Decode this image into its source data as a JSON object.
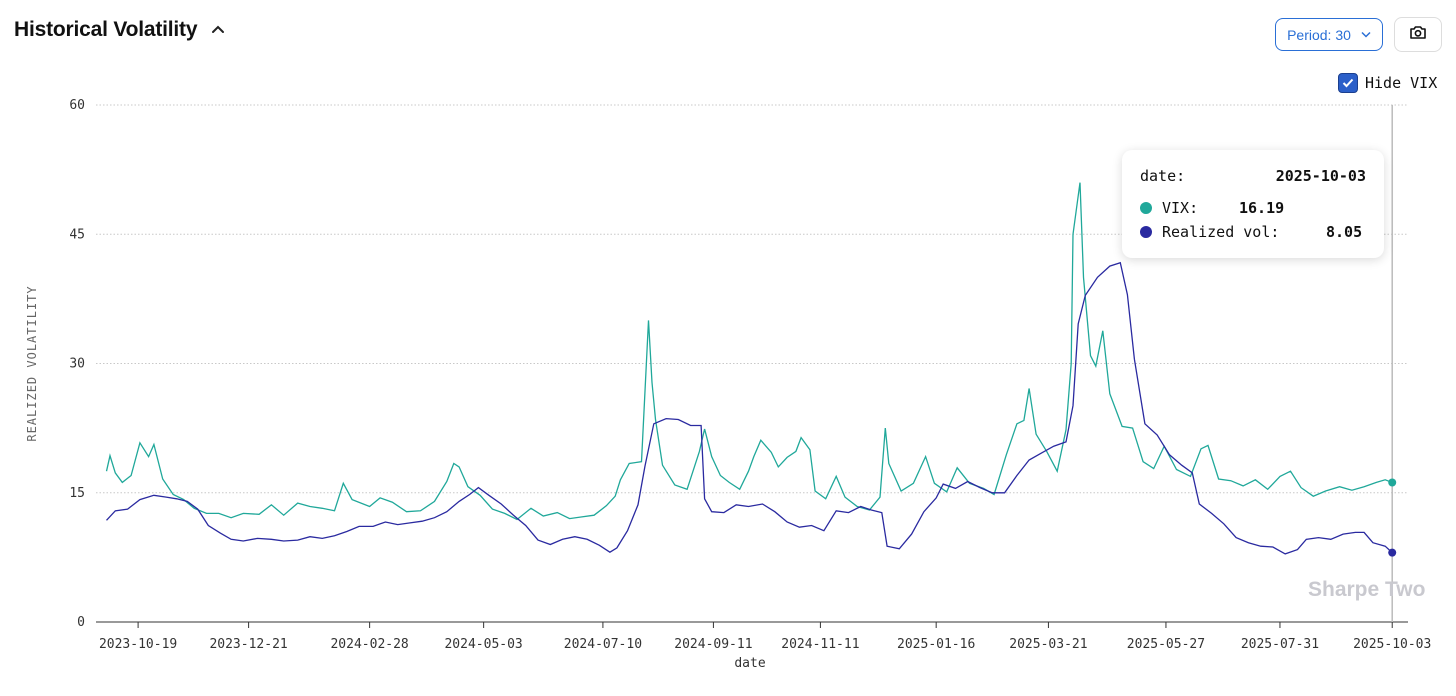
{
  "header": {
    "title": "Historical Volatility",
    "collapse_icon": "chevron-up-icon"
  },
  "controls": {
    "period_label": "Period: 30",
    "camera_icon": "camera-icon",
    "hide_vix_label": "Hide VIX",
    "hide_vix_checked": true
  },
  "tooltip": {
    "date_label": "date:",
    "date_value": "2025-10-03",
    "vix_label": "VIX:",
    "vix_value": "16.19",
    "rv_label": "Realized vol:",
    "rv_value": "8.05"
  },
  "watermark": "Sharpe Two",
  "colors": {
    "vix": "#20a89a",
    "realized": "#2a2aa0",
    "grid": "#c8c8c8"
  },
  "chart_data": {
    "type": "line",
    "xlabel": "date",
    "ylabel": "REALIZED VOLATILITY",
    "ylim": [
      0,
      60
    ],
    "yticks": [
      0,
      15,
      30,
      45,
      60
    ],
    "x_range": [
      "2023-09-25",
      "2025-10-12"
    ],
    "xticks": [
      "2023-10-19",
      "2023-12-21",
      "2024-02-28",
      "2024-05-03",
      "2024-07-10",
      "2024-09-11",
      "2024-11-11",
      "2025-01-16",
      "2025-03-21",
      "2025-05-27",
      "2025-07-31",
      "2025-10-03"
    ],
    "grid": true,
    "series": [
      {
        "name": "VIX",
        "color": "#20a89a",
        "points": [
          [
            "2023-10-01",
            17.5
          ],
          [
            "2023-10-03",
            19.3
          ],
          [
            "2023-10-06",
            17.3
          ],
          [
            "2023-10-10",
            16.2
          ],
          [
            "2023-10-15",
            17.0
          ],
          [
            "2023-10-20",
            20.8
          ],
          [
            "2023-10-25",
            19.2
          ],
          [
            "2023-10-28",
            20.6
          ],
          [
            "2023-11-02",
            16.6
          ],
          [
            "2023-11-08",
            14.8
          ],
          [
            "2023-11-14",
            14.2
          ],
          [
            "2023-11-20",
            13.2
          ],
          [
            "2023-11-27",
            12.6
          ],
          [
            "2023-12-04",
            12.6
          ],
          [
            "2023-12-11",
            12.1
          ],
          [
            "2023-12-18",
            12.6
          ],
          [
            "2023-12-27",
            12.5
          ],
          [
            "2024-01-03",
            13.6
          ],
          [
            "2024-01-10",
            12.4
          ],
          [
            "2024-01-18",
            13.8
          ],
          [
            "2024-01-25",
            13.4
          ],
          [
            "2024-02-01",
            13.2
          ],
          [
            "2024-02-08",
            12.9
          ],
          [
            "2024-02-13",
            16.1
          ],
          [
            "2024-02-18",
            14.2
          ],
          [
            "2024-02-28",
            13.4
          ],
          [
            "2024-03-05",
            14.4
          ],
          [
            "2024-03-12",
            13.9
          ],
          [
            "2024-03-20",
            12.8
          ],
          [
            "2024-03-28",
            12.9
          ],
          [
            "2024-04-05",
            14.0
          ],
          [
            "2024-04-12",
            16.3
          ],
          [
            "2024-04-16",
            18.4
          ],
          [
            "2024-04-19",
            18.0
          ],
          [
            "2024-04-24",
            15.7
          ],
          [
            "2024-05-01",
            14.7
          ],
          [
            "2024-05-08",
            13.1
          ],
          [
            "2024-05-15",
            12.6
          ],
          [
            "2024-05-22",
            11.9
          ],
          [
            "2024-05-30",
            13.2
          ],
          [
            "2024-06-06",
            12.3
          ],
          [
            "2024-06-14",
            12.7
          ],
          [
            "2024-06-21",
            12.0
          ],
          [
            "2024-06-28",
            12.2
          ],
          [
            "2024-07-05",
            12.4
          ],
          [
            "2024-07-12",
            13.5
          ],
          [
            "2024-07-17",
            14.6
          ],
          [
            "2024-07-20",
            16.5
          ],
          [
            "2024-07-25",
            18.4
          ],
          [
            "2024-08-01",
            18.6
          ],
          [
            "2024-08-05",
            35.0
          ],
          [
            "2024-08-07",
            27.8
          ],
          [
            "2024-08-09",
            23.5
          ],
          [
            "2024-08-13",
            18.2
          ],
          [
            "2024-08-20",
            15.9
          ],
          [
            "2024-08-27",
            15.4
          ],
          [
            "2024-09-03",
            19.8
          ],
          [
            "2024-09-06",
            22.4
          ],
          [
            "2024-09-10",
            19.2
          ],
          [
            "2024-09-15",
            17.0
          ],
          [
            "2024-09-20",
            16.2
          ],
          [
            "2024-09-26",
            15.4
          ],
          [
            "2024-10-01",
            17.5
          ],
          [
            "2024-10-04",
            19.2
          ],
          [
            "2024-10-08",
            21.1
          ],
          [
            "2024-10-14",
            19.7
          ],
          [
            "2024-10-18",
            18.0
          ],
          [
            "2024-10-23",
            19.1
          ],
          [
            "2024-10-28",
            19.8
          ],
          [
            "2024-10-31",
            21.4
          ],
          [
            "2024-11-05",
            20.0
          ],
          [
            "2024-11-08",
            15.2
          ],
          [
            "2024-11-14",
            14.3
          ],
          [
            "2024-11-20",
            16.9
          ],
          [
            "2024-11-25",
            14.5
          ],
          [
            "2024-12-02",
            13.4
          ],
          [
            "2024-12-09",
            13.0
          ],
          [
            "2024-12-15",
            14.5
          ],
          [
            "2024-12-18",
            22.5
          ],
          [
            "2024-12-20",
            18.4
          ],
          [
            "2024-12-27",
            15.2
          ],
          [
            "2025-01-03",
            16.1
          ],
          [
            "2025-01-10",
            19.2
          ],
          [
            "2025-01-15",
            16.1
          ],
          [
            "2025-01-22",
            15.1
          ],
          [
            "2025-01-28",
            17.9
          ],
          [
            "2025-02-04",
            16.1
          ],
          [
            "2025-02-12",
            15.5
          ],
          [
            "2025-02-18",
            14.8
          ],
          [
            "2025-02-25",
            19.4
          ],
          [
            "2025-03-03",
            23.0
          ],
          [
            "2025-03-07",
            23.4
          ],
          [
            "2025-03-10",
            27.1
          ],
          [
            "2025-03-14",
            21.8
          ],
          [
            "2025-03-20",
            19.8
          ],
          [
            "2025-03-26",
            17.5
          ],
          [
            "2025-03-31",
            22.3
          ],
          [
            "2025-04-03",
            30.0
          ],
          [
            "2025-04-04",
            45.0
          ],
          [
            "2025-04-08",
            51.0
          ],
          [
            "2025-04-10",
            40.0
          ],
          [
            "2025-04-14",
            30.9
          ],
          [
            "2025-04-17",
            29.7
          ],
          [
            "2025-04-21",
            33.8
          ],
          [
            "2025-04-25",
            26.5
          ],
          [
            "2025-05-02",
            22.7
          ],
          [
            "2025-05-08",
            22.5
          ],
          [
            "2025-05-14",
            18.6
          ],
          [
            "2025-05-20",
            17.8
          ],
          [
            "2025-05-26",
            20.4
          ],
          [
            "2025-06-02",
            17.7
          ],
          [
            "2025-06-10",
            16.9
          ],
          [
            "2025-06-16",
            20.1
          ],
          [
            "2025-06-20",
            20.5
          ],
          [
            "2025-06-26",
            16.6
          ],
          [
            "2025-07-03",
            16.4
          ],
          [
            "2025-07-10",
            15.8
          ],
          [
            "2025-07-17",
            16.5
          ],
          [
            "2025-07-24",
            15.4
          ],
          [
            "2025-07-31",
            16.9
          ],
          [
            "2025-08-06",
            17.5
          ],
          [
            "2025-08-12",
            15.6
          ],
          [
            "2025-08-19",
            14.6
          ],
          [
            "2025-08-26",
            15.2
          ],
          [
            "2025-09-03",
            15.7
          ],
          [
            "2025-09-10",
            15.3
          ],
          [
            "2025-09-17",
            15.7
          ],
          [
            "2025-09-24",
            16.2
          ],
          [
            "2025-09-29",
            16.5
          ],
          [
            "2025-10-03",
            16.19
          ]
        ]
      },
      {
        "name": "Realized vol",
        "color": "#2a2aa0",
        "points": [
          [
            "2023-10-01",
            11.8
          ],
          [
            "2023-10-06",
            12.9
          ],
          [
            "2023-10-13",
            13.1
          ],
          [
            "2023-10-20",
            14.2
          ],
          [
            "2023-10-28",
            14.7
          ],
          [
            "2023-11-04",
            14.5
          ],
          [
            "2023-11-10",
            14.3
          ],
          [
            "2023-11-16",
            14.0
          ],
          [
            "2023-11-22",
            13.1
          ],
          [
            "2023-11-28",
            11.2
          ],
          [
            "2023-12-05",
            10.3
          ],
          [
            "2023-12-11",
            9.6
          ],
          [
            "2023-12-18",
            9.4
          ],
          [
            "2023-12-26",
            9.7
          ],
          [
            "2024-01-03",
            9.6
          ],
          [
            "2024-01-10",
            9.4
          ],
          [
            "2024-01-18",
            9.5
          ],
          [
            "2024-01-25",
            9.9
          ],
          [
            "2024-02-01",
            9.7
          ],
          [
            "2024-02-08",
            10.0
          ],
          [
            "2024-02-15",
            10.5
          ],
          [
            "2024-02-22",
            11.1
          ],
          [
            "2024-03-01",
            11.1
          ],
          [
            "2024-03-08",
            11.6
          ],
          [
            "2024-03-15",
            11.3
          ],
          [
            "2024-03-22",
            11.5
          ],
          [
            "2024-03-29",
            11.7
          ],
          [
            "2024-04-05",
            12.1
          ],
          [
            "2024-04-12",
            12.8
          ],
          [
            "2024-04-19",
            14.0
          ],
          [
            "2024-04-25",
            14.8
          ],
          [
            "2024-04-30",
            15.6
          ],
          [
            "2024-05-06",
            14.7
          ],
          [
            "2024-05-13",
            13.7
          ],
          [
            "2024-05-20",
            12.4
          ],
          [
            "2024-05-27",
            11.2
          ],
          [
            "2024-06-03",
            9.5
          ],
          [
            "2024-06-10",
            9.0
          ],
          [
            "2024-06-17",
            9.6
          ],
          [
            "2024-06-24",
            9.9
          ],
          [
            "2024-07-01",
            9.6
          ],
          [
            "2024-07-08",
            8.9
          ],
          [
            "2024-07-14",
            8.1
          ],
          [
            "2024-07-18",
            8.6
          ],
          [
            "2024-07-24",
            10.6
          ],
          [
            "2024-07-30",
            13.6
          ],
          [
            "2024-08-03",
            18.1
          ],
          [
            "2024-08-08",
            23.0
          ],
          [
            "2024-08-15",
            23.6
          ],
          [
            "2024-08-22",
            23.5
          ],
          [
            "2024-08-29",
            22.8
          ],
          [
            "2024-09-04",
            22.8
          ],
          [
            "2024-09-06",
            14.3
          ],
          [
            "2024-09-10",
            12.8
          ],
          [
            "2024-09-17",
            12.7
          ],
          [
            "2024-09-24",
            13.6
          ],
          [
            "2024-10-01",
            13.4
          ],
          [
            "2024-10-09",
            13.7
          ],
          [
            "2024-10-16",
            12.8
          ],
          [
            "2024-10-23",
            11.6
          ],
          [
            "2024-10-30",
            11.0
          ],
          [
            "2024-11-06",
            11.2
          ],
          [
            "2024-11-13",
            10.6
          ],
          [
            "2024-11-20",
            12.9
          ],
          [
            "2024-11-27",
            12.7
          ],
          [
            "2024-12-04",
            13.4
          ],
          [
            "2024-12-10",
            13.0
          ],
          [
            "2024-12-16",
            12.7
          ],
          [
            "2024-12-19",
            8.8
          ],
          [
            "2024-12-26",
            8.5
          ],
          [
            "2025-01-02",
            10.2
          ],
          [
            "2025-01-09",
            12.8
          ],
          [
            "2025-01-16",
            14.4
          ],
          [
            "2025-01-20",
            16.0
          ],
          [
            "2025-01-27",
            15.5
          ],
          [
            "2025-02-03",
            16.3
          ],
          [
            "2025-02-10",
            15.6
          ],
          [
            "2025-02-17",
            15.0
          ],
          [
            "2025-02-24",
            15.0
          ],
          [
            "2025-03-03",
            17.0
          ],
          [
            "2025-03-10",
            18.8
          ],
          [
            "2025-03-17",
            19.6
          ],
          [
            "2025-03-24",
            20.4
          ],
          [
            "2025-03-31",
            20.9
          ],
          [
            "2025-04-04",
            25.1
          ],
          [
            "2025-04-07",
            34.6
          ],
          [
            "2025-04-11",
            37.9
          ],
          [
            "2025-04-18",
            40.0
          ],
          [
            "2025-04-25",
            41.3
          ],
          [
            "2025-05-01",
            41.7
          ],
          [
            "2025-05-05",
            38.0
          ],
          [
            "2025-05-09",
            30.5
          ],
          [
            "2025-05-15",
            23.0
          ],
          [
            "2025-05-22",
            21.7
          ],
          [
            "2025-05-29",
            19.4
          ],
          [
            "2025-06-05",
            18.2
          ],
          [
            "2025-06-11",
            17.3
          ],
          [
            "2025-06-15",
            13.7
          ],
          [
            "2025-06-22",
            12.6
          ],
          [
            "2025-06-29",
            11.4
          ],
          [
            "2025-07-06",
            9.8
          ],
          [
            "2025-07-13",
            9.2
          ],
          [
            "2025-07-20",
            8.8
          ],
          [
            "2025-07-27",
            8.7
          ],
          [
            "2025-08-03",
            7.9
          ],
          [
            "2025-08-10",
            8.4
          ],
          [
            "2025-08-15",
            9.6
          ],
          [
            "2025-08-22",
            9.8
          ],
          [
            "2025-08-29",
            9.6
          ],
          [
            "2025-09-05",
            10.2
          ],
          [
            "2025-09-12",
            10.4
          ],
          [
            "2025-09-17",
            10.4
          ],
          [
            "2025-09-22",
            9.2
          ],
          [
            "2025-09-29",
            8.8
          ],
          [
            "2025-10-03",
            8.05
          ]
        ]
      }
    ]
  }
}
